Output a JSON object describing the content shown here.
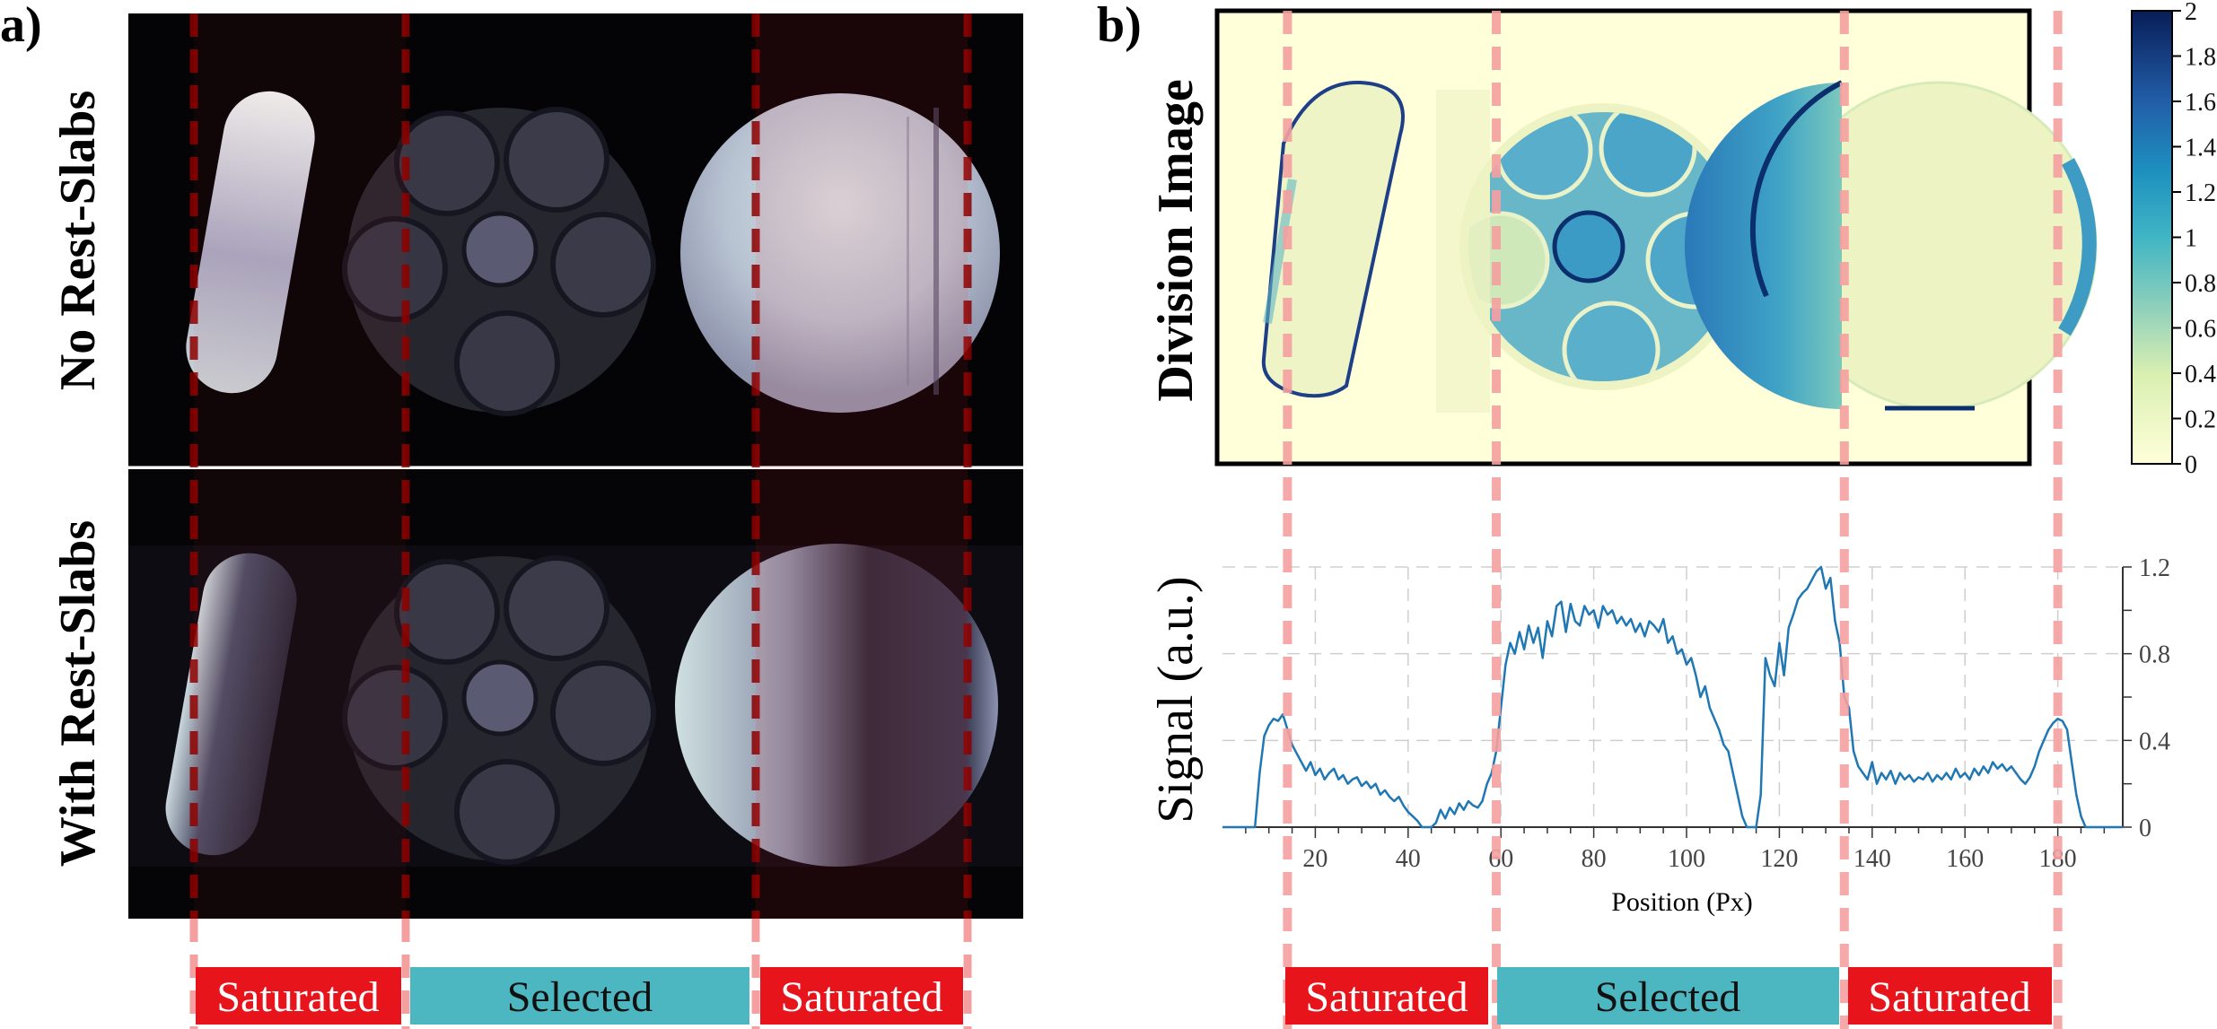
{
  "panel_a": {
    "label": "a)",
    "top_title": "No Rest-Slabs",
    "bottom_title": "With Rest-Slabs"
  },
  "panel_b": {
    "label": "b)",
    "map_title": "Division Image",
    "colorbar_ticks": [
      "0",
      "0.2",
      "0.4",
      "0.6",
      "0.8",
      "1",
      "1.2",
      "1.4",
      "1.6",
      "1.8",
      "2"
    ]
  },
  "bands": {
    "saturated_label": "Saturated",
    "selected_label": "Selected",
    "saturated_color": "#e8141c",
    "selected_color": "#4cb7c0"
  },
  "colors": {
    "line": "#1f77b4",
    "marker_a": "#8b0000",
    "marker_b": "#f4a0a0"
  },
  "chart_data": {
    "type": "line",
    "title": "",
    "xlabel": "Position (Px)",
    "ylabel": "Signal (a.u.)",
    "xlim": [
      0,
      194
    ],
    "ylim": [
      0,
      1.2
    ],
    "x_ticks": [
      "20",
      "40",
      "60",
      "80",
      "100",
      "120",
      "140",
      "160",
      "180"
    ],
    "y_ticks": [
      "0",
      "0.4",
      "0.8",
      "1.2"
    ],
    "grid": true,
    "markers_x": [
      14,
      59,
      134,
      180
    ],
    "series": [
      {
        "name": "Signal",
        "points": [
          [
            0,
            0
          ],
          [
            7,
            0
          ],
          [
            8,
            0.25
          ],
          [
            9,
            0.42
          ],
          [
            10,
            0.47
          ],
          [
            11,
            0.5
          ],
          [
            12,
            0.49
          ],
          [
            13,
            0.52
          ],
          [
            14,
            0.45
          ],
          [
            15,
            0.38
          ],
          [
            16,
            0.34
          ],
          [
            17,
            0.3
          ],
          [
            18,
            0.26
          ],
          [
            19,
            0.3
          ],
          [
            20,
            0.24
          ],
          [
            21,
            0.27
          ],
          [
            22,
            0.22
          ],
          [
            23,
            0.25
          ],
          [
            24,
            0.27
          ],
          [
            25,
            0.22
          ],
          [
            26,
            0.24
          ],
          [
            27,
            0.2
          ],
          [
            28,
            0.22
          ],
          [
            29,
            0.23
          ],
          [
            30,
            0.19
          ],
          [
            31,
            0.21
          ],
          [
            32,
            0.18
          ],
          [
            33,
            0.2
          ],
          [
            34,
            0.15
          ],
          [
            35,
            0.17
          ],
          [
            36,
            0.14
          ],
          [
            37,
            0.12
          ],
          [
            38,
            0.14
          ],
          [
            39,
            0.1
          ],
          [
            40,
            0.07
          ],
          [
            41,
            0.05
          ],
          [
            42,
            0.03
          ],
          [
            43,
            0
          ],
          [
            45,
            0
          ],
          [
            46,
            0.02
          ],
          [
            47,
            0.08
          ],
          [
            48,
            0.04
          ],
          [
            49,
            0.09
          ],
          [
            50,
            0.06
          ],
          [
            51,
            0.11
          ],
          [
            52,
            0.08
          ],
          [
            53,
            0.12
          ],
          [
            54,
            0.1
          ],
          [
            55,
            0.09
          ],
          [
            56,
            0.12
          ],
          [
            57,
            0.2
          ],
          [
            58,
            0.25
          ],
          [
            59,
            0.35
          ],
          [
            60,
            0.55
          ],
          [
            61,
            0.75
          ],
          [
            62,
            0.85
          ],
          [
            63,
            0.8
          ],
          [
            64,
            0.9
          ],
          [
            65,
            0.82
          ],
          [
            66,
            0.93
          ],
          [
            67,
            0.85
          ],
          [
            68,
            0.92
          ],
          [
            69,
            0.78
          ],
          [
            70,
            0.95
          ],
          [
            71,
            0.88
          ],
          [
            72,
            1.02
          ],
          [
            73,
            1.04
          ],
          [
            74,
            0.9
          ],
          [
            75,
            1.03
          ],
          [
            76,
            0.95
          ],
          [
            77,
            0.93
          ],
          [
            78,
            1.02
          ],
          [
            79,
            0.98
          ],
          [
            80,
            1.0
          ],
          [
            81,
            0.92
          ],
          [
            82,
            1.02
          ],
          [
            83,
            0.98
          ],
          [
            84,
            1.0
          ],
          [
            85,
            0.94
          ],
          [
            86,
            0.97
          ],
          [
            87,
            0.93
          ],
          [
            88,
            0.96
          ],
          [
            89,
            0.9
          ],
          [
            90,
            0.94
          ],
          [
            91,
            0.88
          ],
          [
            92,
            0.95
          ],
          [
            93,
            0.93
          ],
          [
            94,
            0.9
          ],
          [
            95,
            0.96
          ],
          [
            96,
            0.85
          ],
          [
            97,
            0.88
          ],
          [
            98,
            0.8
          ],
          [
            99,
            0.82
          ],
          [
            100,
            0.75
          ],
          [
            101,
            0.78
          ],
          [
            102,
            0.7
          ],
          [
            103,
            0.6
          ],
          [
            104,
            0.65
          ],
          [
            105,
            0.55
          ],
          [
            106,
            0.5
          ],
          [
            107,
            0.45
          ],
          [
            108,
            0.38
          ],
          [
            109,
            0.35
          ],
          [
            110,
            0.25
          ],
          [
            111,
            0.15
          ],
          [
            112,
            0.05
          ],
          [
            113,
            0
          ],
          [
            115,
            0
          ],
          [
            116,
            0.15
          ],
          [
            117,
            0.78
          ],
          [
            118,
            0.7
          ],
          [
            119,
            0.65
          ],
          [
            120,
            0.85
          ],
          [
            121,
            0.7
          ],
          [
            122,
            0.92
          ],
          [
            123,
            0.98
          ],
          [
            124,
            1.05
          ],
          [
            125,
            1.08
          ],
          [
            126,
            1.1
          ],
          [
            127,
            1.14
          ],
          [
            128,
            1.18
          ],
          [
            129,
            1.2
          ],
          [
            130,
            1.1
          ],
          [
            131,
            1.15
          ],
          [
            132,
            0.95
          ],
          [
            133,
            0.85
          ],
          [
            134,
            0.6
          ],
          [
            135,
            0.55
          ],
          [
            136,
            0.35
          ],
          [
            137,
            0.28
          ],
          [
            138,
            0.25
          ],
          [
            139,
            0.22
          ],
          [
            140,
            0.3
          ],
          [
            141,
            0.2
          ],
          [
            142,
            0.25
          ],
          [
            143,
            0.22
          ],
          [
            144,
            0.26
          ],
          [
            145,
            0.2
          ],
          [
            146,
            0.25
          ],
          [
            147,
            0.22
          ],
          [
            148,
            0.24
          ],
          [
            149,
            0.21
          ],
          [
            150,
            0.23
          ],
          [
            151,
            0.22
          ],
          [
            152,
            0.25
          ],
          [
            153,
            0.21
          ],
          [
            154,
            0.24
          ],
          [
            155,
            0.22
          ],
          [
            156,
            0.25
          ],
          [
            157,
            0.22
          ],
          [
            158,
            0.27
          ],
          [
            159,
            0.23
          ],
          [
            160,
            0.25
          ],
          [
            161,
            0.22
          ],
          [
            162,
            0.27
          ],
          [
            163,
            0.24
          ],
          [
            164,
            0.28
          ],
          [
            165,
            0.25
          ],
          [
            166,
            0.3
          ],
          [
            167,
            0.27
          ],
          [
            168,
            0.29
          ],
          [
            169,
            0.26
          ],
          [
            170,
            0.28
          ],
          [
            171,
            0.25
          ],
          [
            172,
            0.22
          ],
          [
            173,
            0.2
          ],
          [
            174,
            0.23
          ],
          [
            175,
            0.28
          ],
          [
            176,
            0.35
          ],
          [
            177,
            0.4
          ],
          [
            178,
            0.45
          ],
          [
            179,
            0.48
          ],
          [
            180,
            0.5
          ],
          [
            181,
            0.49
          ],
          [
            182,
            0.45
          ],
          [
            183,
            0.3
          ],
          [
            184,
            0.15
          ],
          [
            185,
            0.05
          ],
          [
            186,
            0
          ],
          [
            194,
            0
          ]
        ]
      }
    ]
  }
}
